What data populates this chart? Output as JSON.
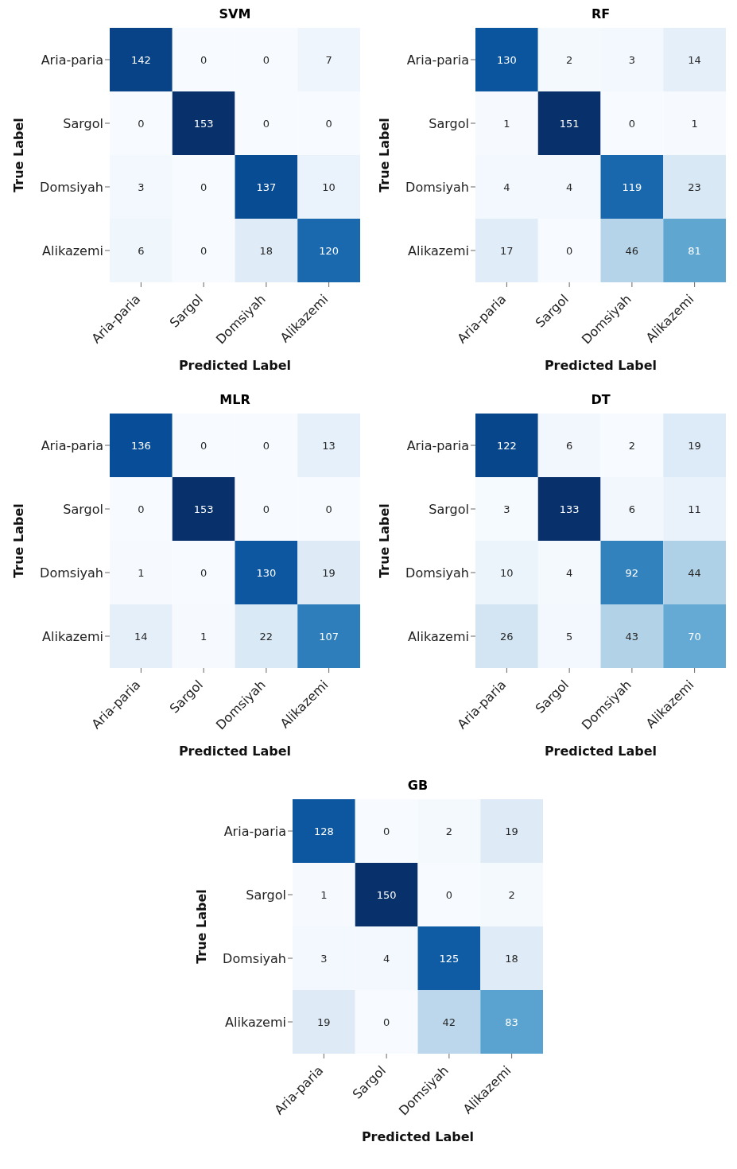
{
  "chart_data": [
    {
      "type": "heatmap",
      "title": "SVM",
      "xlabel": "Predicted Label",
      "ylabel": "True Label",
      "categories": [
        "Aria-paria",
        "Sargol",
        "Domsiyah",
        "Alikazemi"
      ],
      "y_categories": [
        "Aria-paria",
        "Sargol",
        "Domsiyah",
        "Alikazemi"
      ],
      "data_labels": true,
      "cells": [
        [
          142,
          0,
          0,
          7
        ],
        [
          0,
          153,
          0,
          0
        ],
        [
          3,
          0,
          137,
          10
        ],
        [
          6,
          0,
          18,
          120
        ]
      ]
    },
    {
      "type": "heatmap",
      "title": "RF",
      "xlabel": "Predicted Label",
      "ylabel": "True Label",
      "categories": [
        "Aria-paria",
        "Sargol",
        "Domsiyah",
        "Alikazemi"
      ],
      "y_categories": [
        "Aria-paria",
        "Sargol",
        "Domsiyah",
        "Alikazemi"
      ],
      "data_labels": true,
      "cells": [
        [
          130,
          2,
          3,
          14
        ],
        [
          1,
          151,
          0,
          1
        ],
        [
          4,
          4,
          119,
          23
        ],
        [
          17,
          0,
          46,
          81
        ]
      ]
    },
    {
      "type": "heatmap",
      "title": "MLR",
      "xlabel": "Predicted Label",
      "ylabel": "True Label",
      "categories": [
        "Aria-paria",
        "Sargol",
        "Domsiyah",
        "Alikazemi"
      ],
      "y_categories": [
        "Aria-paria",
        "Sargol",
        "Domsiyah",
        "Alikazemi"
      ],
      "data_labels": true,
      "cells": [
        [
          136,
          0,
          0,
          13
        ],
        [
          0,
          153,
          0,
          0
        ],
        [
          1,
          0,
          130,
          19
        ],
        [
          14,
          1,
          22,
          107
        ]
      ]
    },
    {
      "type": "heatmap",
      "title": "DT",
      "xlabel": "Predicted Label",
      "ylabel": "True Label",
      "categories": [
        "Aria-paria",
        "Sargol",
        "Domsiyah",
        "Alikazemi"
      ],
      "y_categories": [
        "Aria-paria",
        "Sargol",
        "Domsiyah",
        "Alikazemi"
      ],
      "data_labels": true,
      "cells": [
        [
          122,
          6,
          2,
          19
        ],
        [
          3,
          133,
          6,
          11
        ],
        [
          10,
          4,
          92,
          44
        ],
        [
          26,
          5,
          43,
          70
        ]
      ]
    },
    {
      "type": "heatmap",
      "title": "GB",
      "xlabel": "Predicted Label",
      "ylabel": "True Label",
      "categories": [
        "Aria-paria",
        "Sargol",
        "Domsiyah",
        "Alikazemi"
      ],
      "y_categories": [
        "Aria-paria",
        "Sargol",
        "Domsiyah",
        "Alikazemi"
      ],
      "data_labels": true,
      "cells": [
        [
          128,
          0,
          2,
          19
        ],
        [
          1,
          150,
          0,
          2
        ],
        [
          3,
          4,
          125,
          18
        ],
        [
          19,
          0,
          42,
          83
        ]
      ]
    }
  ]
}
